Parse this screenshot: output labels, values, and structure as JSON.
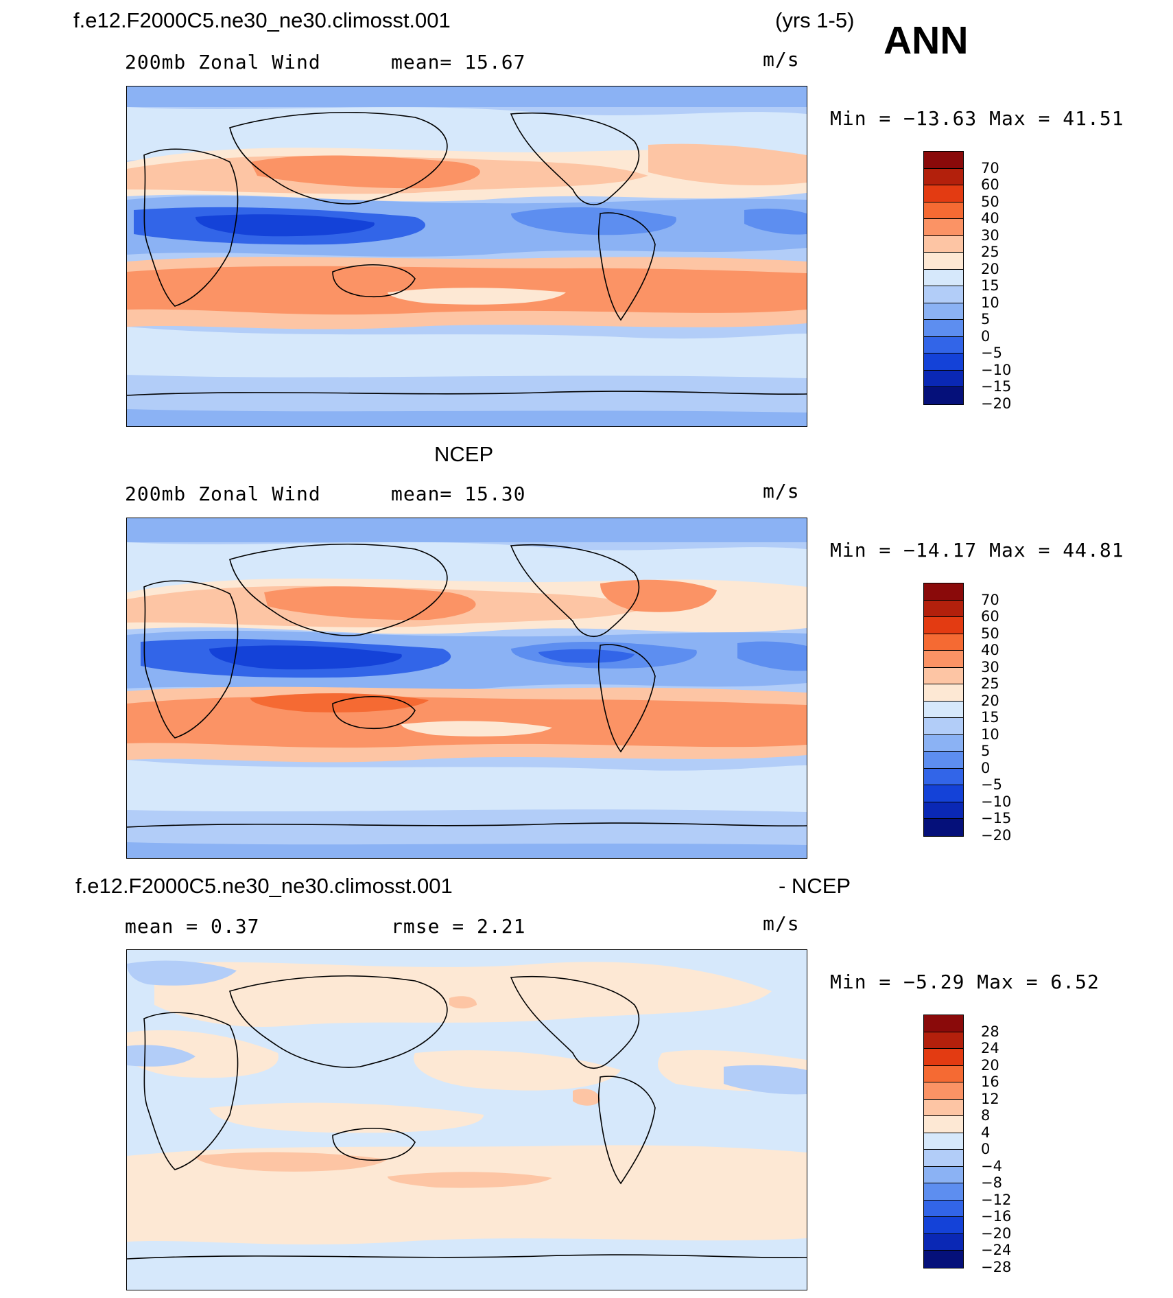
{
  "header": {
    "case": "f.e12.F2000C5.ne30_ne30.climosst.001",
    "years": "(yrs 1-5)",
    "season": "ANN"
  },
  "panels": [
    {
      "id": "model",
      "variable": "200mb Zonal Wind",
      "stat_left": "mean=   15.67",
      "units": "m/s",
      "minmax": "Min = −13.63 Max =  41.51",
      "colorbar": {
        "labels": [
          "70",
          "60",
          "50",
          "40",
          "30",
          "25",
          "20",
          "15",
          "10",
          "5",
          "0",
          "−5",
          "−10",
          "−15",
          "−20"
        ],
        "colors": [
          "#8a0a0a",
          "#b3200c",
          "#e33b12",
          "#f56a33",
          "#fb9365",
          "#fdc5a4",
          "#fde8d4",
          "#d6e8fb",
          "#b2cdf8",
          "#8bb2f4",
          "#5d8ef0",
          "#3265e8",
          "#1442d8",
          "#0a28b5",
          "#05107a"
        ]
      }
    },
    {
      "id": "obs",
      "title": "NCEP",
      "variable": "200mb Zonal Wind",
      "stat_left": "mean=   15.30",
      "units": "m/s",
      "minmax": "Min = −14.17 Max =  44.81",
      "colorbar": {
        "labels": [
          "70",
          "60",
          "50",
          "40",
          "30",
          "25",
          "20",
          "15",
          "10",
          "5",
          "0",
          "−5",
          "−10",
          "−15",
          "−20"
        ],
        "colors": [
          "#8a0a0a",
          "#b3200c",
          "#e33b12",
          "#f56a33",
          "#fb9365",
          "#fdc5a4",
          "#fde8d4",
          "#d6e8fb",
          "#b2cdf8",
          "#8bb2f4",
          "#5d8ef0",
          "#3265e8",
          "#1442d8",
          "#0a28b5",
          "#05107a"
        ]
      }
    },
    {
      "id": "diff",
      "title_left": "f.e12.F2000C5.ne30_ne30.climosst.001",
      "title_right": "- NCEP",
      "stat_left": "mean =    0.37",
      "stat_mid": "rmse =    2.21",
      "units": "m/s",
      "minmax": "Min =  −5.29 Max =    6.52",
      "colorbar": {
        "labels": [
          "28",
          "24",
          "20",
          "16",
          "12",
          "8",
          "4",
          "0",
          "−4",
          "−8",
          "−12",
          "−16",
          "−20",
          "−24",
          "−28"
        ],
        "colors": [
          "#8a0a0a",
          "#b3200c",
          "#e33b12",
          "#f56a33",
          "#fb9365",
          "#fdc5a4",
          "#fde8d4",
          "#d6e8fb",
          "#b2cdf8",
          "#8bb2f4",
          "#5d8ef0",
          "#3265e8",
          "#1442d8",
          "#0a28b5",
          "#05107a"
        ]
      }
    }
  ]
}
